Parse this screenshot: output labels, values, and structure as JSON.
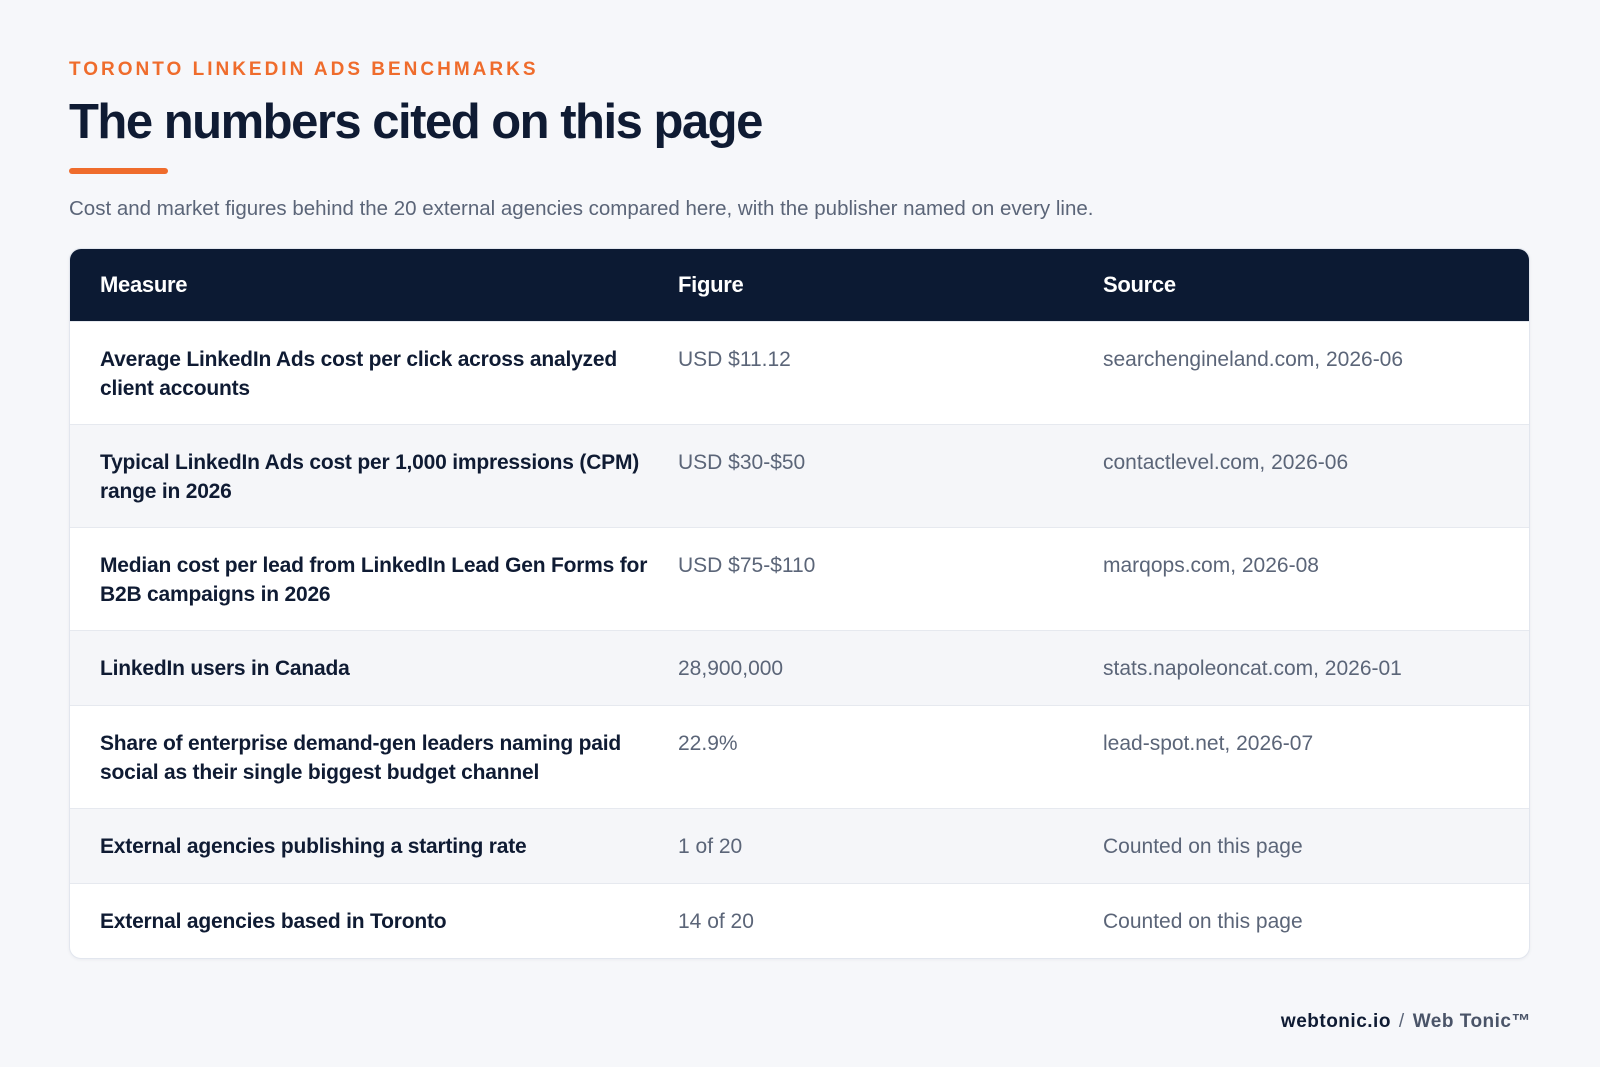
{
  "header": {
    "eyebrow": "TORONTO LINKEDIN ADS BENCHMARKS",
    "title": "The numbers cited on this page",
    "subtitle": "Cost and market figures behind the 20 external agencies compared here, with the publisher named on every line."
  },
  "table": {
    "columns": [
      "Measure",
      "Figure",
      "Source"
    ],
    "rows": [
      {
        "measure": "Average LinkedIn Ads cost per click across analyzed client accounts",
        "figure": "USD $11.12",
        "source": "searchengineland.com, 2026-06"
      },
      {
        "measure": "Typical LinkedIn Ads cost per 1,000 impressions (CPM) range in 2026",
        "figure": "USD $30-$50",
        "source": "contactlevel.com, 2026-06"
      },
      {
        "measure": "Median cost per lead from LinkedIn Lead Gen Forms for B2B campaigns in 2026",
        "figure": "USD $75-$110",
        "source": "marqops.com, 2026-08"
      },
      {
        "measure": "LinkedIn users in Canada",
        "figure": "28,900,000",
        "source": "stats.napoleoncat.com, 2026-01"
      },
      {
        "measure": "Share of enterprise demand-gen leaders naming paid social as their single biggest budget channel",
        "figure": "22.9%",
        "source": "lead-spot.net, 2026-07"
      },
      {
        "measure": "External agencies publishing a starting rate",
        "figure": "1 of 20",
        "source": "Counted on this page"
      },
      {
        "measure": "External agencies based in Toronto",
        "figure": "14 of 20",
        "source": "Counted on this page"
      }
    ]
  },
  "footer": {
    "domain": "webtonic.io",
    "separator": "/",
    "brand": "Web Tonic™"
  },
  "colors": {
    "accent": "#ef6c2c",
    "header_bg": "#0c1a33",
    "page_bg": "#f6f7fa"
  }
}
